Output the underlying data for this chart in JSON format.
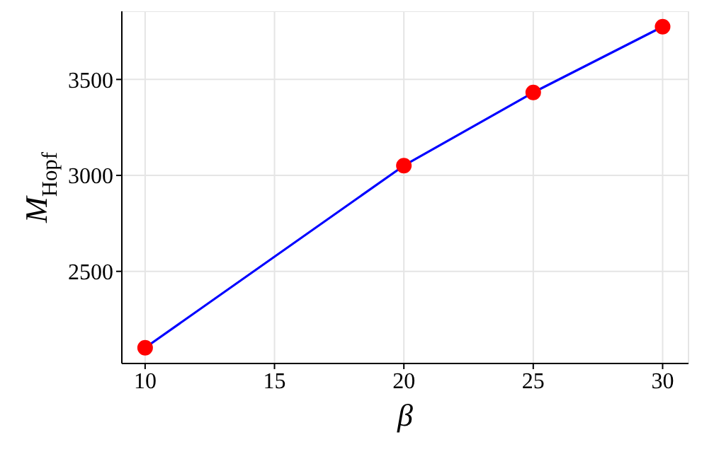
{
  "chart_data": {
    "type": "line",
    "xlabel": "β",
    "ylabel": "M$_{Hopf}$",
    "x": [
      10,
      20,
      25,
      30
    ],
    "series": [
      {
        "color": "#0000ff",
        "colors": [
          "#ff0000",
          "#ff0000",
          "#ff0000",
          "#ff0000"
        ],
        "values": [
          2102,
          3051,
          3432,
          3775
        ]
      }
    ],
    "xlim": [
      9.1,
      31
    ],
    "xticks": [
      10,
      15,
      20,
      25,
      30
    ],
    "ylim": [
      2020,
      3855
    ],
    "yticks": [
      2500,
      3000,
      3500
    ],
    "grid": true,
    "marker": "circle",
    "line_style": "solid"
  }
}
